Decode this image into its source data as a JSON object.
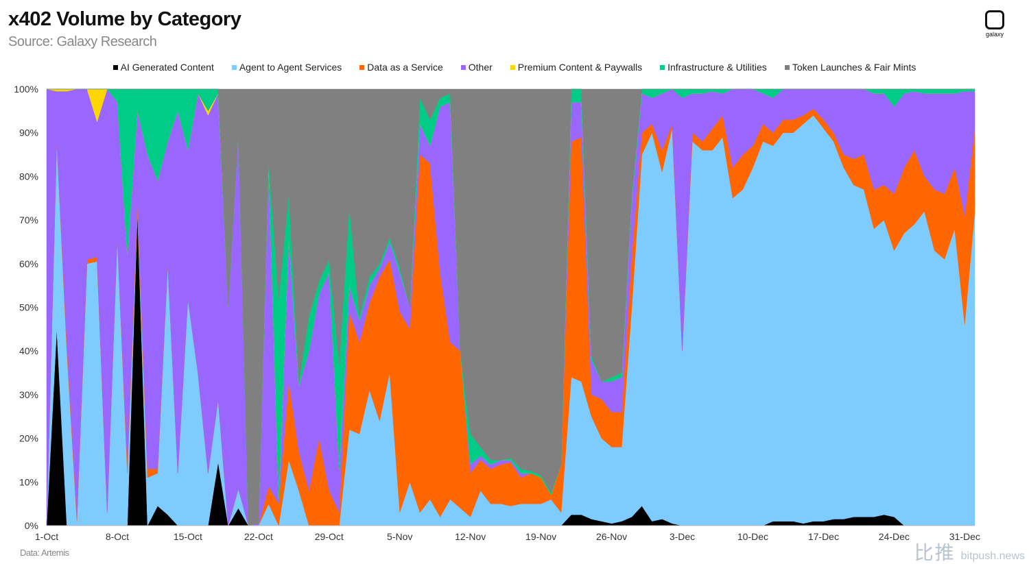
{
  "header": {
    "title": "x402 Volume by Category",
    "subtitle": "Source: Galaxy Research"
  },
  "logo": {
    "text": "galaxy"
  },
  "footer": {
    "source": "Data: Artemis"
  },
  "watermark": {
    "cn": "比推",
    "en": "bitpush.news"
  },
  "chart_data": {
    "type": "area",
    "stacked": "percent",
    "title": "x402 Volume by Category",
    "xlabel": "",
    "ylabel": "",
    "ylim": [
      0,
      100
    ],
    "grid": false,
    "legend_position": "top",
    "y_ticks": [
      "0%",
      "10%",
      "20%",
      "30%",
      "40%",
      "50%",
      "60%",
      "70%",
      "80%",
      "90%",
      "100%"
    ],
    "x_ticks": [
      "1-Oct",
      "8-Oct",
      "15-Oct",
      "22-Oct",
      "29-Oct",
      "5-Nov",
      "12-Nov",
      "19-Nov",
      "26-Nov",
      "3-Dec",
      "10-Dec",
      "17-Dec",
      "24-Dec",
      "31-Dec"
    ],
    "x": [
      "1-Oct",
      "2-Oct",
      "3-Oct",
      "4-Oct",
      "5-Oct",
      "6-Oct",
      "7-Oct",
      "8-Oct",
      "9-Oct",
      "10-Oct",
      "11-Oct",
      "12-Oct",
      "13-Oct",
      "14-Oct",
      "15-Oct",
      "16-Oct",
      "17-Oct",
      "18-Oct",
      "19-Oct",
      "20-Oct",
      "21-Oct",
      "22-Oct",
      "23-Oct",
      "24-Oct",
      "25-Oct",
      "26-Oct",
      "27-Oct",
      "28-Oct",
      "29-Oct",
      "30-Oct",
      "31-Oct",
      "1-Nov",
      "2-Nov",
      "3-Nov",
      "4-Nov",
      "5-Nov",
      "6-Nov",
      "7-Nov",
      "8-Nov",
      "9-Nov",
      "10-Nov",
      "11-Nov",
      "12-Nov",
      "13-Nov",
      "14-Nov",
      "15-Nov",
      "16-Nov",
      "17-Nov",
      "18-Nov",
      "19-Nov",
      "20-Nov",
      "21-Nov",
      "22-Nov",
      "23-Nov",
      "24-Nov",
      "25-Nov",
      "26-Nov",
      "27-Nov",
      "28-Nov",
      "29-Nov",
      "30-Nov",
      "1-Dec",
      "2-Dec",
      "3-Dec",
      "4-Dec",
      "5-Dec",
      "6-Dec",
      "7-Dec",
      "8-Dec",
      "9-Dec",
      "10-Dec",
      "11-Dec",
      "12-Dec",
      "13-Dec",
      "14-Dec",
      "15-Dec",
      "16-Dec",
      "17-Dec",
      "18-Dec",
      "19-Dec",
      "20-Dec",
      "21-Dec",
      "22-Dec",
      "23-Dec",
      "24-Dec",
      "25-Dec",
      "26-Dec",
      "27-Dec",
      "28-Dec",
      "29-Dec",
      "30-Dec",
      "31-Dec",
      "1-Jan"
    ],
    "series": [
      {
        "name": "AI Generated Content",
        "color": "#000000",
        "values": [
          0,
          45,
          0,
          0,
          0,
          0,
          0,
          0,
          0,
          72,
          0,
          4.5,
          2.5,
          0,
          0,
          0,
          0,
          14.5,
          0,
          4,
          0,
          0,
          0,
          0,
          0,
          0,
          0,
          0,
          0,
          0,
          0,
          0,
          0,
          0,
          0,
          0,
          0,
          0,
          0,
          0,
          0,
          0,
          0,
          0,
          0,
          0,
          0,
          0,
          0,
          0,
          0,
          0,
          2.5,
          2.5,
          1.5,
          1,
          0.5,
          1,
          2,
          4.5,
          1,
          1.5,
          0.5,
          0,
          0,
          0,
          0,
          0,
          0,
          0,
          0,
          0,
          1,
          1,
          1,
          0.5,
          1,
          1,
          1.5,
          1.5,
          2,
          2,
          2,
          2.5,
          2,
          0,
          0,
          0,
          0,
          0,
          0,
          0,
          0
        ]
      },
      {
        "name": "Agent to Agent Services",
        "color": "#7DCBFF",
        "values": [
          0,
          43,
          40,
          1,
          60,
          60.5,
          3,
          66,
          12,
          0,
          11,
          7.5,
          57.5,
          12,
          52,
          35,
          12,
          14.5,
          0,
          4.5,
          0,
          0,
          5,
          0,
          15,
          8,
          0,
          0,
          0,
          0,
          22,
          21,
          31,
          24,
          35,
          3,
          10,
          3,
          6,
          2,
          6,
          4,
          2,
          8,
          5,
          5,
          4.5,
          5,
          5,
          5,
          6,
          3,
          31.5,
          30.5,
          23.5,
          19,
          17.5,
          17,
          48,
          80.5,
          89,
          79.5,
          90.5,
          40,
          88,
          86,
          86,
          89,
          75,
          77,
          82,
          88,
          86,
          89,
          89,
          91.5,
          93,
          90,
          86.5,
          80.5,
          76,
          75,
          66,
          67.5,
          61,
          67,
          69,
          72,
          63,
          61,
          68,
          46,
          72
        ]
      },
      {
        "name": "Data as a Service",
        "color": "#FF6600",
        "values": [
          0,
          0,
          2,
          1,
          1,
          1,
          0,
          0,
          2,
          2,
          2,
          1,
          0,
          0,
          0,
          0,
          0,
          0,
          0,
          0,
          0,
          0,
          4,
          5,
          18,
          9,
          8,
          20,
          8,
          3,
          27,
          21,
          20,
          33,
          26,
          46,
          35,
          82,
          77,
          56,
          36,
          36,
          10,
          7,
          8,
          9,
          10,
          6,
          7,
          6,
          1,
          11,
          54,
          56,
          5,
          9,
          8,
          8,
          12,
          5,
          2,
          5,
          1,
          0,
          2,
          2,
          5,
          5,
          7,
          8,
          5,
          4,
          3,
          3,
          3,
          2,
          1.5,
          2,
          2,
          3,
          6,
          8,
          9,
          8,
          13,
          15,
          17,
          8,
          14,
          15,
          14,
          25,
          19
        ]
      },
      {
        "name": "Other",
        "color": "#9966FF",
        "values": [
          100,
          11.5,
          57.5,
          98,
          39,
          31,
          97,
          31,
          48,
          21,
          72,
          66,
          28,
          83,
          34,
          64,
          82,
          70,
          50,
          81.5,
          0,
          0.5,
          74,
          1,
          33,
          15,
          32,
          33,
          50,
          10,
          6,
          5,
          4,
          2,
          4,
          9,
          5,
          7,
          4,
          38,
          55,
          0,
          2,
          1,
          1,
          1,
          0.5,
          1,
          0,
          0,
          0,
          0,
          9,
          8,
          8,
          4,
          7,
          8,
          13,
          9,
          6,
          13,
          8,
          58,
          9,
          11,
          8.5,
          5,
          18,
          15,
          13,
          7,
          8,
          7,
          7,
          6,
          4.5,
          7,
          10,
          15,
          16,
          15,
          22,
          21,
          20,
          17,
          13.5,
          19,
          22,
          23,
          17,
          28.5,
          8.5
        ]
      },
      {
        "name": "Premium Content & Paywalls",
        "color": "#FFD700",
        "values": [
          0,
          0.5,
          0.5,
          0,
          0,
          7.5,
          0,
          0,
          0,
          0,
          0,
          0,
          0,
          0,
          0,
          0,
          1,
          0,
          0,
          0,
          0,
          0,
          0,
          0,
          0,
          0,
          0,
          0,
          0,
          0,
          0,
          0,
          0,
          0,
          0,
          0,
          0,
          0,
          0,
          0,
          0,
          0,
          0,
          0,
          0,
          0,
          0,
          0,
          0,
          0,
          0,
          0,
          0,
          0,
          0,
          0,
          0,
          0,
          0,
          0,
          0,
          0,
          0,
          0,
          0,
          0,
          0,
          0,
          0,
          0,
          0,
          0,
          0,
          0,
          0,
          0,
          0,
          0,
          0,
          0,
          0,
          0,
          0,
          0,
          0,
          0,
          0,
          0,
          0,
          0,
          0,
          0,
          0
        ]
      },
      {
        "name": "Infrastructure & Utilities",
        "color": "#00CC88",
        "values": [
          0,
          0,
          0,
          0,
          0,
          0,
          0,
          3,
          38,
          5,
          15,
          21,
          12,
          5,
          14,
          1,
          5,
          1,
          0,
          0,
          0,
          0,
          1,
          46,
          10,
          1,
          8,
          3,
          3,
          24,
          18,
          1,
          2,
          1,
          1,
          1,
          0,
          6,
          6,
          2,
          2,
          0,
          7,
          2,
          1,
          0,
          0.5,
          1,
          0.5,
          0.5,
          0.5,
          0,
          3,
          3,
          1,
          0,
          1,
          1,
          1,
          1,
          2,
          1,
          0,
          2,
          1,
          1,
          0.5,
          1,
          0,
          0,
          0,
          1,
          2,
          0,
          0,
          0,
          0,
          0,
          0,
          0,
          0,
          0,
          1,
          1,
          4,
          1,
          0.5,
          1,
          1,
          1,
          1,
          0.5,
          0.5
        ]
      },
      {
        "name": "Token Launches & Fair Mints",
        "color": "#808080",
        "values": [
          0,
          0,
          0,
          0,
          0,
          0,
          0,
          0,
          0,
          0,
          0,
          0,
          0,
          0,
          0,
          0,
          0,
          0,
          50,
          10,
          100,
          99.5,
          16,
          48,
          24,
          67,
          52,
          44,
          39,
          63,
          27,
          52,
          43,
          40,
          34,
          41,
          50,
          2,
          7,
          2,
          1,
          60,
          79,
          82,
          85,
          85,
          84.5,
          87,
          87.5,
          88.5,
          92.5,
          86,
          0,
          0,
          61,
          67,
          66,
          65,
          24,
          0,
          0,
          0,
          0,
          0,
          0,
          0,
          0,
          0,
          0,
          0,
          0,
          0,
          0,
          0,
          0,
          0,
          0,
          0,
          0,
          0,
          0,
          0,
          0,
          0,
          0,
          0,
          0,
          0,
          0,
          0,
          0,
          0,
          0
        ]
      }
    ]
  }
}
